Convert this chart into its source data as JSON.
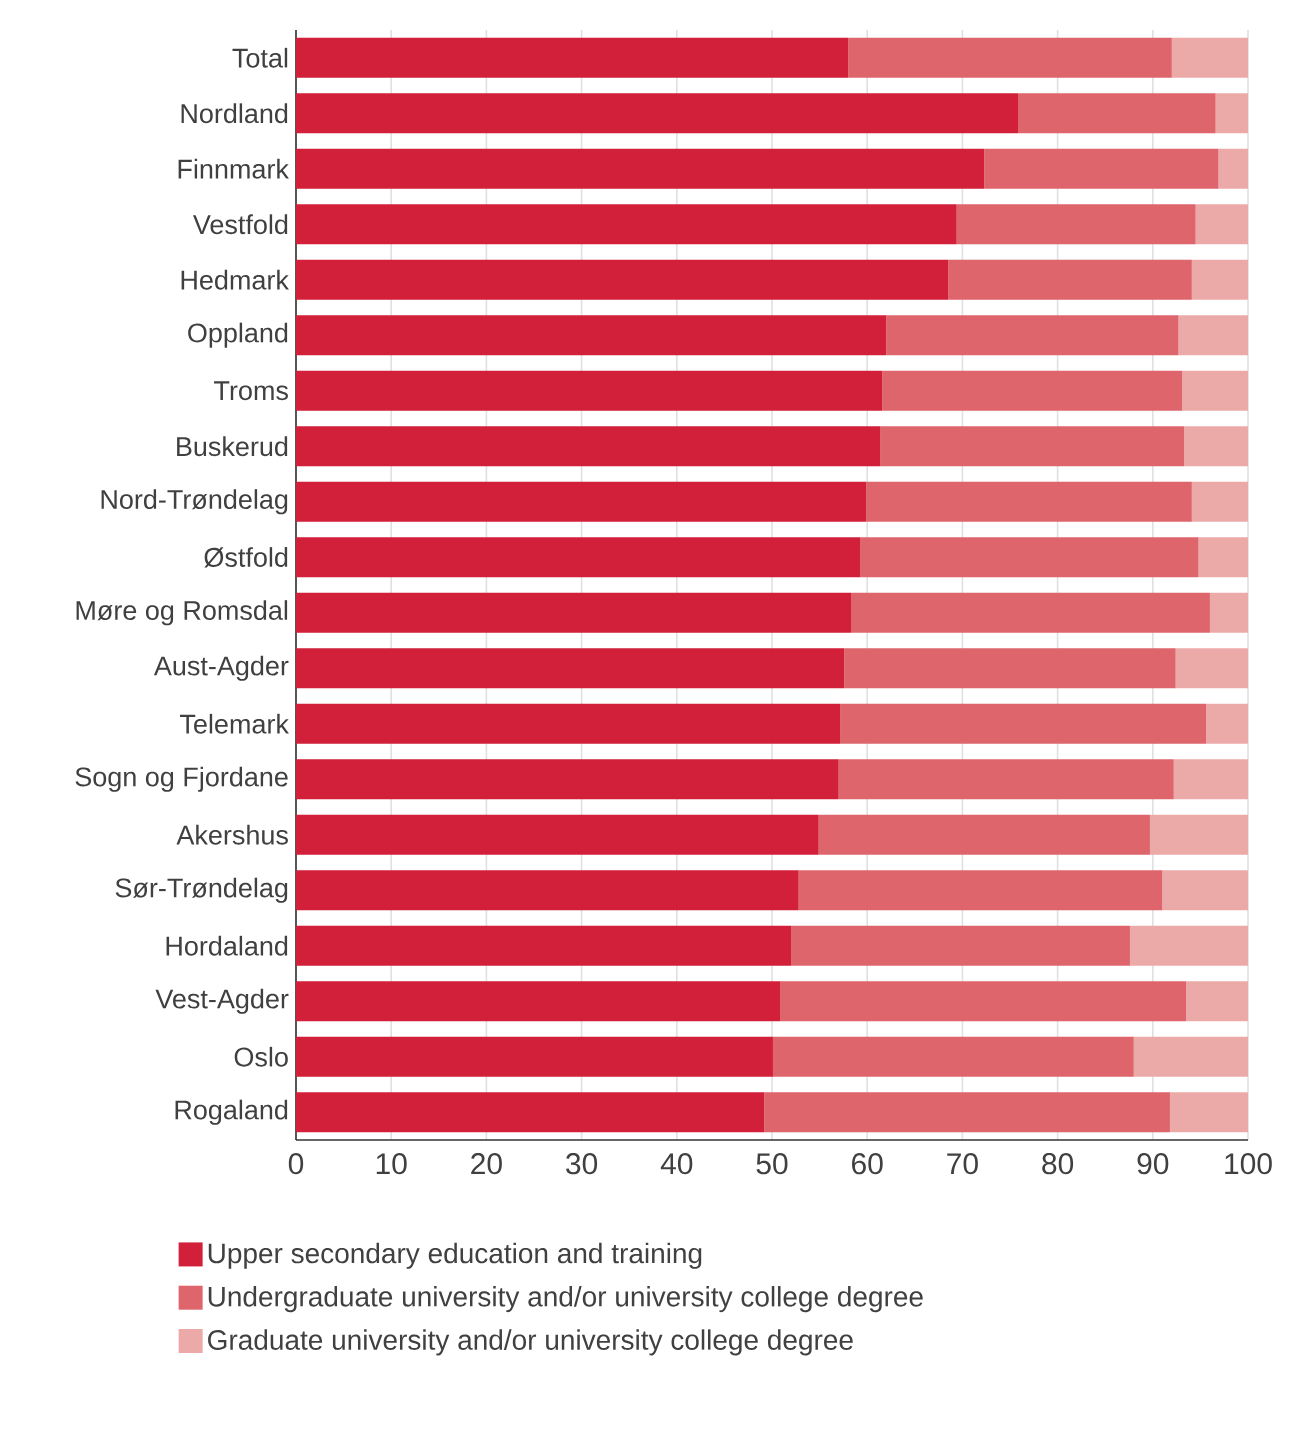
{
  "chart_data": {
    "type": "bar",
    "orientation": "horizontal",
    "stacked": true,
    "categories": [
      "Total",
      "Nordland",
      "Finnmark",
      "Vestfold",
      "Hedmark",
      "Oppland",
      "Troms",
      "Buskerud",
      "Nord-Trøndelag",
      "Østfold",
      "Møre og Romsdal",
      "Aust-Agder",
      "Telemark",
      "Sogn og Fjordane",
      "Akershus",
      "Sør-Trøndelag",
      "Hordaland",
      "Vest-Agder",
      "Oslo",
      "Rogaland"
    ],
    "series": [
      {
        "name": "Upper secondary education and training",
        "color": "#d21f3a",
        "values": [
          58.0,
          75.9,
          72.3,
          69.4,
          68.5,
          62.0,
          61.6,
          61.4,
          59.9,
          59.3,
          58.3,
          57.6,
          57.2,
          57.0,
          54.9,
          52.8,
          52.0,
          50.9,
          50.1,
          49.2
        ]
      },
      {
        "name": "Undergraduate university and/or university college degree",
        "color": "#de656c",
        "values": [
          34.0,
          20.7,
          24.6,
          25.1,
          25.6,
          30.7,
          31.5,
          31.9,
          34.2,
          35.5,
          37.7,
          34.8,
          38.4,
          35.2,
          34.8,
          38.2,
          35.6,
          42.6,
          37.9,
          42.6
        ]
      },
      {
        "name": "Graduate university and/or university college degree",
        "color": "#ebaaa8",
        "values": [
          8.0,
          3.4,
          3.1,
          5.5,
          5.9,
          7.3,
          6.9,
          6.7,
          5.9,
          5.2,
          4.0,
          7.6,
          4.4,
          7.8,
          10.3,
          9.0,
          12.4,
          6.5,
          12.0,
          8.2
        ]
      }
    ],
    "xlim": [
      0,
      100
    ],
    "xticks": [
      0,
      10,
      20,
      30,
      40,
      50,
      60,
      70,
      80,
      90,
      100
    ],
    "grid": "x",
    "legend": "bottom"
  }
}
